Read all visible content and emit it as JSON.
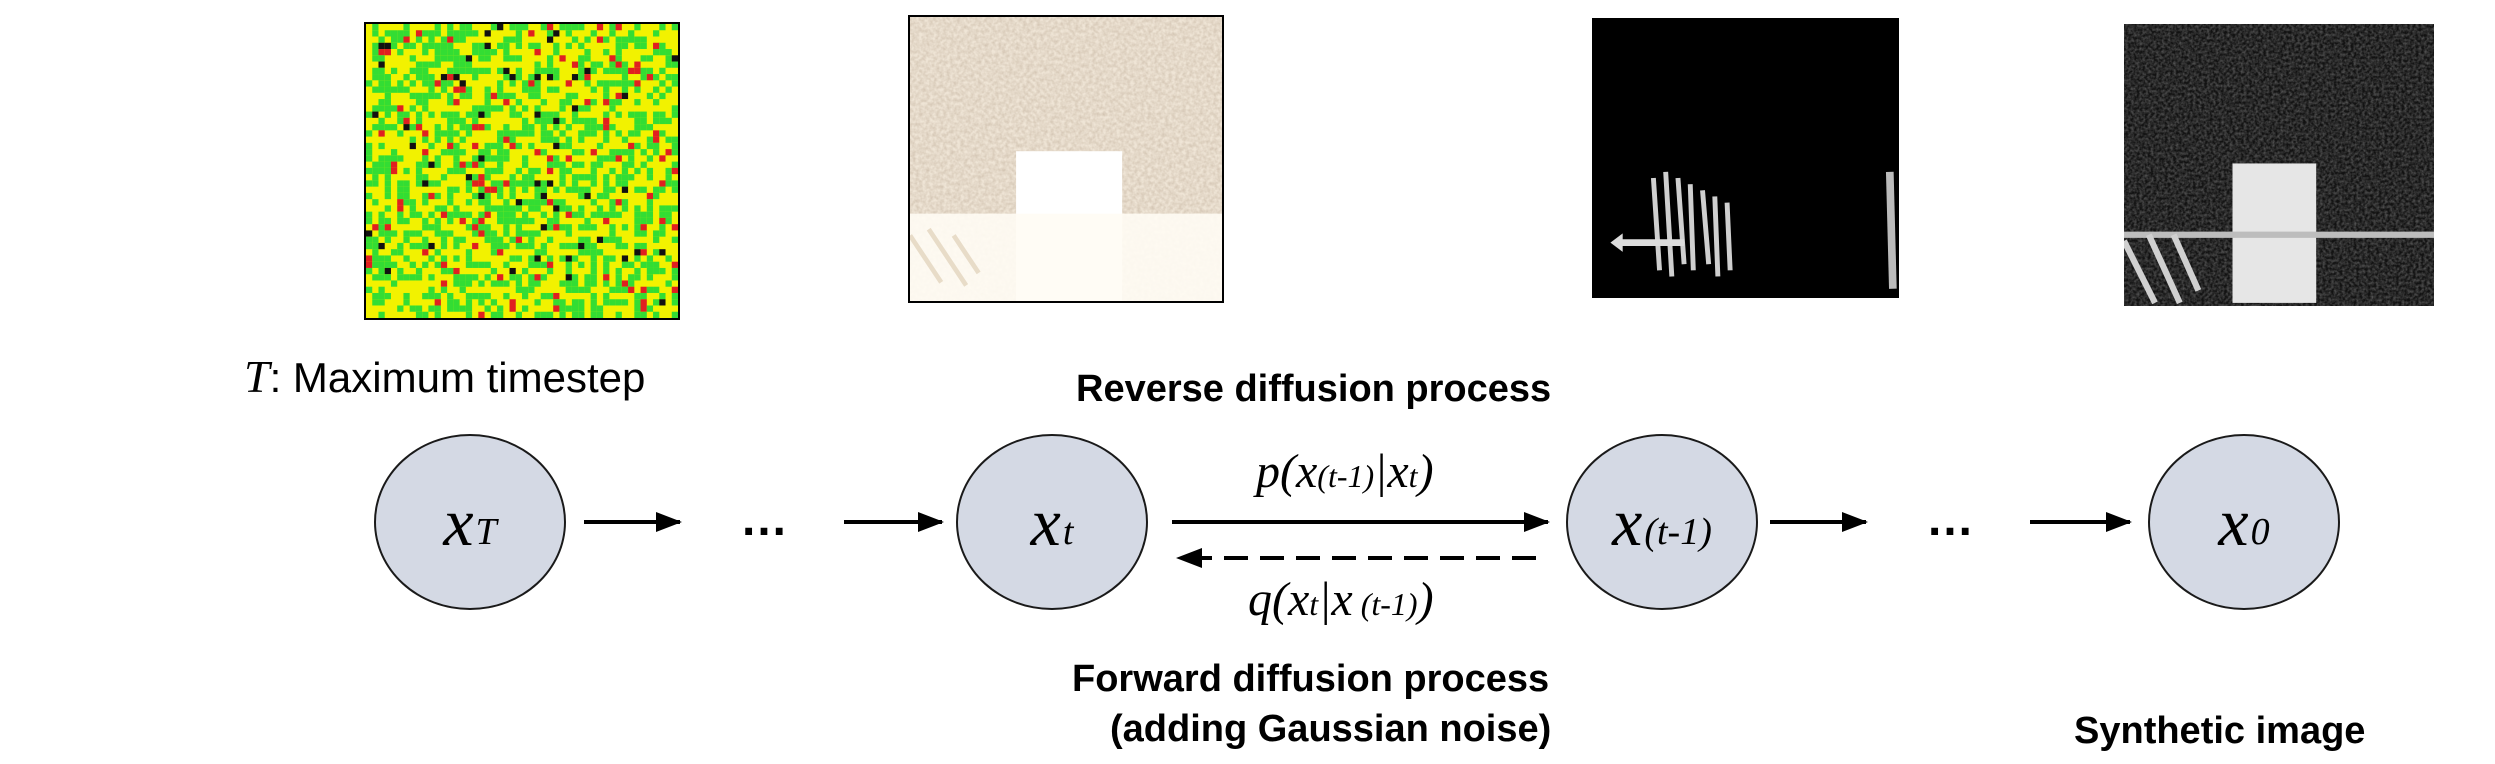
{
  "annotation": {
    "symbol": "T",
    "text": ": Maximum timestep"
  },
  "nodes": [
    {
      "var": "x",
      "sub": "T"
    },
    {
      "var": "x",
      "sub": "t"
    },
    {
      "var": "x",
      "sub": "(t-1)"
    },
    {
      "var": "x",
      "sub": "0"
    }
  ],
  "ellipsis": "…",
  "reverse": {
    "label": "Reverse diffusion process",
    "eq": {
      "fn": "p",
      "a": "x",
      "a_sub": "(t-1)",
      "bar": "|",
      "b": "x",
      "b_sub": "t"
    }
  },
  "forward": {
    "label": "Forward diffusion process",
    "label2": "(adding Gaussian noise)",
    "eq": {
      "fn": "q",
      "a": "x",
      "a_sub": "t",
      "bar": "|",
      "b": "x",
      "b_sub": " (t-1)"
    }
  },
  "output_label": "Synthetic image",
  "colors": {
    "node_fill": "#d4d9e4",
    "noise_bg": "#f2f200",
    "noise_green": "#33dd33",
    "noise_red": "#e02020"
  }
}
